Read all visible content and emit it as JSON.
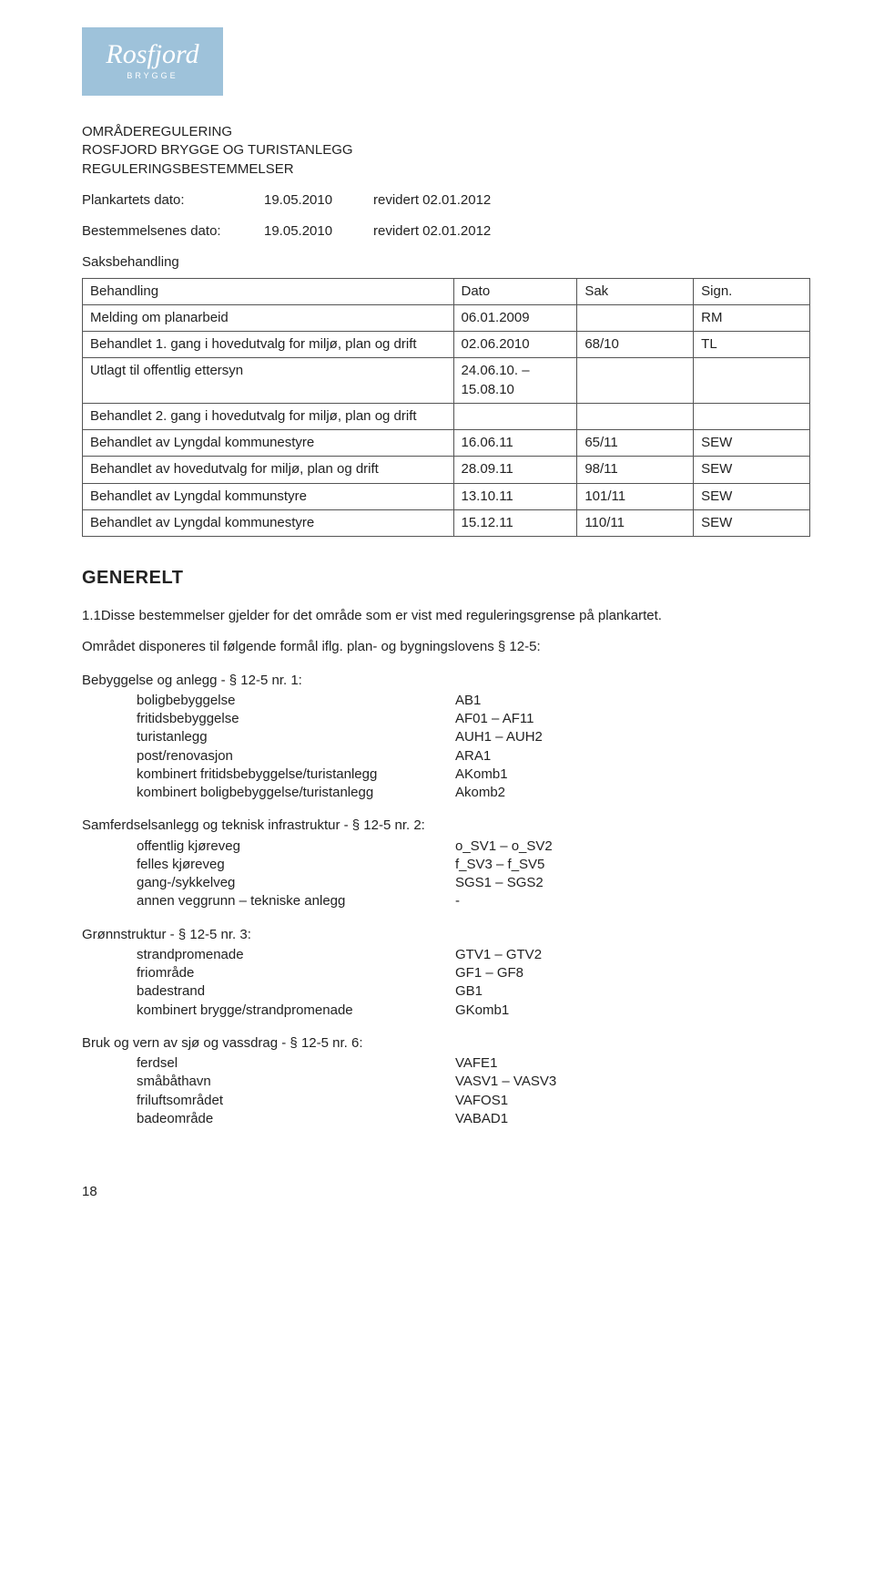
{
  "logo": {
    "script": "Rosfjord",
    "sub": "BRYGGE"
  },
  "header": {
    "line1": "OMRÅDEREGULERING",
    "line2": "ROSFJORD BRYGGE OG TURISTANLEGG",
    "line3": "REGULERINGSBESTEMMELSER"
  },
  "dates": [
    {
      "label": "Plankartets dato:",
      "d1": "19.05.2010",
      "d2": "revidert 02.01.2012"
    },
    {
      "label": "Bestemmelsenes dato:",
      "d1": "19.05.2010",
      "d2": "revidert 02.01.2012"
    }
  ],
  "saks_heading": "Saksbehandling",
  "proc_table": {
    "columns": [
      "Behandling",
      "Dato",
      "Sak",
      "Sign."
    ],
    "rows": [
      [
        "Melding om planarbeid",
        "06.01.2009",
        "",
        "RM"
      ],
      [
        "Behandlet 1. gang i hovedutvalg for miljø, plan og drift",
        "02.06.2010",
        "68/10",
        "TL"
      ],
      [
        "Utlagt til offentlig ettersyn",
        "24.06.10. – 15.08.10",
        "",
        ""
      ],
      [
        "Behandlet 2. gang i hovedutvalg for miljø, plan og drift",
        "",
        "",
        ""
      ],
      [
        "Behandlet av Lyngdal kommunestyre",
        "16.06.11",
        "65/11",
        "SEW"
      ],
      [
        "Behandlet av hovedutvalg for miljø, plan og drift",
        "28.09.11",
        "98/11",
        "SEW"
      ],
      [
        "Behandlet av Lyngdal kommunstyre",
        "13.10.11",
        "101/11",
        "SEW"
      ],
      [
        "Behandlet av Lyngdal kommunestyre",
        "15.12.11",
        "110/11",
        "SEW"
      ]
    ]
  },
  "generelt_heading": "GENERELT",
  "para1": "1.1Disse bestemmelser gjelder for det område som er vist med reguleringsgrense på plankartet.",
  "para2": "Området disponeres til følgende formål iflg. plan- og bygningslovens § 12-5:",
  "sections": [
    {
      "title": "Bebyggelse og anlegg - § 12-5 nr. 1:",
      "rows": [
        [
          "boligbebyggelse",
          "AB1"
        ],
        [
          "fritidsbebyggelse",
          "AF01 – AF11"
        ],
        [
          "turistanlegg",
          "AUH1 – AUH2"
        ],
        [
          "post/renovasjon",
          "ARA1"
        ],
        [
          "kombinert fritidsbebyggelse/turistanlegg",
          "AKomb1"
        ],
        [
          "kombinert boligbebyggelse/turistanlegg",
          "Akomb2"
        ]
      ]
    },
    {
      "title": "Samferdselsanlegg og teknisk infrastruktur - § 12-5 nr. 2:",
      "rows": [
        [
          "offentlig kjøreveg",
          "o_SV1 – o_SV2"
        ],
        [
          "felles kjøreveg",
          "f_SV3 – f_SV5"
        ],
        [
          "gang-/sykkelveg",
          "SGS1 – SGS2"
        ],
        [
          "annen veggrunn – tekniske anlegg",
          "-"
        ]
      ]
    },
    {
      "title": "Grønnstruktur - § 12-5 nr. 3:",
      "rows": [
        [
          "strandpromenade",
          "GTV1 – GTV2"
        ],
        [
          "friområde",
          "GF1 – GF8"
        ],
        [
          "badestrand",
          "GB1"
        ],
        [
          "kombinert brygge/strandpromenade",
          "GKomb1"
        ]
      ]
    },
    {
      "title": "Bruk og vern av sjø og vassdrag - § 12-5 nr. 6:",
      "rows": [
        [
          "ferdsel",
          "VAFE1"
        ],
        [
          "småbåthavn",
          "VASV1 – VASV3"
        ],
        [
          "friluftsområdet",
          "VAFOS1"
        ],
        [
          "badeområde",
          "VABAD1"
        ]
      ]
    }
  ],
  "page_number": "18"
}
